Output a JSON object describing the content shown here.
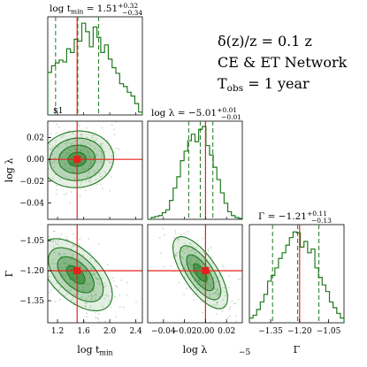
{
  "info_text": {
    "line1": "δ(z)/z = 0.1 z",
    "line2": "CE & ET Network",
    "line3": "T",
    "line3_sub": "obs",
    "line3_rest": " = 1 year"
  },
  "chart_data": {
    "type": "corner",
    "colors": {
      "posterior": "#1f7a1f",
      "truth": "#e8211c",
      "marker": "#e8211c"
    },
    "parameters": [
      {
        "key": "log_tmin",
        "label_main": "log t",
        "label_sub": "min",
        "title": {
          "prefix": "log t",
          "prefix_sub": "min",
          "value": "= 1.51",
          "plus": "+0.32",
          "minus": "−0.34"
        },
        "range": [
          1.05,
          2.5
        ],
        "ticks": [
          1.2,
          1.6,
          2.0,
          2.4
        ],
        "tick_labels": [
          "1.2",
          "1.6",
          "2.0",
          "2.4"
        ],
        "truth": 1.5,
        "median": 1.51,
        "q_low": 1.17,
        "q_high": 1.83,
        "histogram": [
          0.45,
          0.52,
          0.55,
          0.58,
          0.56,
          0.7,
          0.66,
          0.8,
          0.78,
          0.97,
          0.88,
          0.72,
          0.93,
          0.82,
          0.66,
          0.74,
          0.59,
          0.5,
          0.44,
          0.33,
          0.3,
          0.24,
          0.2,
          0.12,
          0.03
        ]
      },
      {
        "key": "log_lambda",
        "label_main": "log λ",
        "label_sub": "",
        "title": {
          "prefix": "log λ",
          "prefix_sub": "",
          "value": "= −5.01",
          "plus": "+0.01",
          "minus": "−0.01"
        },
        "range": [
          -0.055,
          0.035
        ],
        "ticks": [
          -0.04,
          -0.02,
          0.0,
          0.02
        ],
        "tick_labels": [
          "−0.04",
          "−0.02",
          "0.00",
          "0.02"
        ],
        "truth": 0.0,
        "median": -0.005,
        "q_low": -0.016,
        "q_high": 0.007,
        "histogram": [
          0.0,
          0.02,
          0.03,
          0.04,
          0.07,
          0.1,
          0.2,
          0.33,
          0.45,
          0.62,
          0.72,
          0.83,
          0.9,
          0.82,
          0.95,
          0.98,
          0.78,
          0.68,
          0.55,
          0.42,
          0.28,
          0.17,
          0.08,
          0.04,
          0.02,
          0.01
        ]
      },
      {
        "key": "gamma",
        "label_main": "Γ",
        "label_sub": "",
        "title": {
          "prefix": "Γ",
          "prefix_sub": "",
          "value": "= −1.21",
          "plus": "+0.11",
          "minus": "−0.13"
        },
        "range": [
          -1.46,
          -0.97
        ],
        "ticks": [
          -1.35,
          -1.2,
          -1.05
        ],
        "tick_labels": [
          "−1.35",
          "−1.20",
          "−1.05"
        ],
        "truth": -1.2,
        "median": -1.21,
        "q_low": -1.34,
        "q_high": -1.1,
        "histogram": [
          0.05,
          0.08,
          0.14,
          0.22,
          0.3,
          0.44,
          0.5,
          0.58,
          0.68,
          0.74,
          0.82,
          0.9,
          0.96,
          0.95,
          0.8,
          0.86,
          0.74,
          0.78,
          0.58,
          0.48,
          0.4,
          0.33,
          0.22,
          0.16,
          0.1,
          0.05
        ]
      }
    ],
    "contours": [
      {
        "x": "log_tmin",
        "y": "log_lambda",
        "center": [
          1.5,
          0.0
        ],
        "sigma": [
          0.28,
          0.013
        ],
        "rho": 0.05
      },
      {
        "x": "log_tmin",
        "y": "gamma",
        "center": [
          1.48,
          -1.22
        ],
        "sigma": [
          0.28,
          0.09
        ],
        "rho": -0.55
      },
      {
        "x": "log_lambda",
        "y": "gamma",
        "center": [
          -0.005,
          -1.21
        ],
        "sigma": [
          0.013,
          0.09
        ],
        "rho": -0.7
      }
    ],
    "levels_sigma": [
      0.5,
      1.0,
      1.5,
      2.0
    ],
    "stray_labels": {
      "top_left": "$1",
      "bottom_middle": "−5"
    }
  }
}
